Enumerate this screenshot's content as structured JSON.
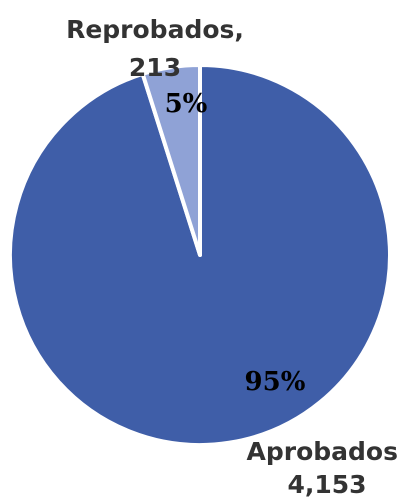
{
  "chart_data": {
    "type": "pie",
    "categories": [
      "Aprobados",
      "Reprobados"
    ],
    "values": [
      4153,
      213
    ],
    "percentages": [
      "95%",
      "5%"
    ],
    "slice_labels": [
      {
        "name": "Aprobados,",
        "value": "4,153"
      },
      {
        "name": "Reprobados,",
        "value": "213"
      }
    ],
    "colors": [
      "#3f5ea8",
      "#8fa2d6"
    ],
    "legend": "none"
  }
}
